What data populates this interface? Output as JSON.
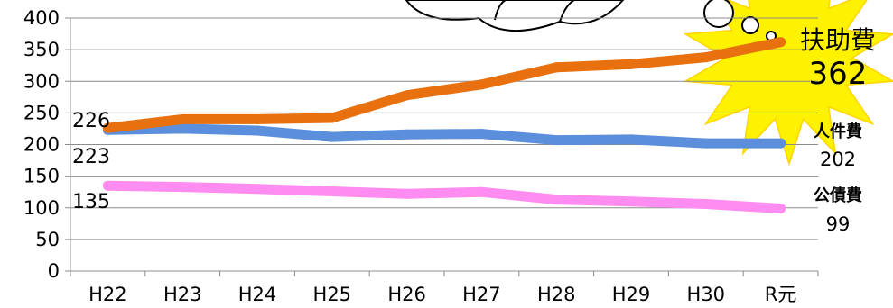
{
  "chart_data": {
    "type": "line",
    "categories": [
      "H22",
      "H23",
      "H24",
      "H25",
      "H26",
      "H27",
      "H28",
      "H29",
      "H30",
      "R元"
    ],
    "ylim": [
      0,
      400
    ],
    "yticks": [
      "0",
      "50",
      "100",
      "150",
      "200",
      "250",
      "300",
      "350",
      "400"
    ],
    "grid": true,
    "series": [
      {
        "name": "扶助費",
        "color": "#E8700F",
        "values": [
          226,
          240,
          240,
          242,
          278,
          295,
          322,
          327,
          338,
          362
        ],
        "start_label": "226",
        "end_value_label": "362"
      },
      {
        "name": "人件費",
        "color": "#5B8FDB",
        "values": [
          223,
          225,
          222,
          212,
          216,
          217,
          207,
          208,
          202,
          202
        ],
        "start_label": "223",
        "end_value_label": "202"
      },
      {
        "name": "公債費",
        "color": "#FF8CF0",
        "values": [
          135,
          133,
          130,
          126,
          122,
          125,
          113,
          110,
          106,
          99
        ],
        "start_label": "135",
        "end_value_label": "99"
      }
    ]
  }
}
